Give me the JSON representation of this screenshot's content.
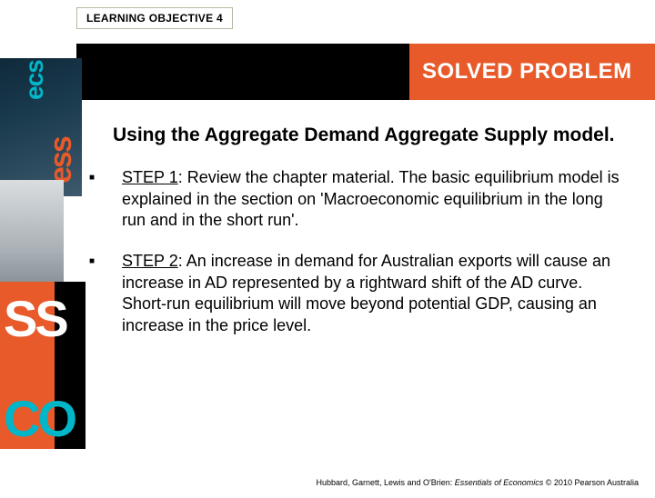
{
  "header": {
    "learning_objective": "LEARNING OBJECTIVE 4",
    "banner_label": "SOLVED PROBLEM"
  },
  "content": {
    "title": "Using the Aggregate Demand Aggregate Supply model.",
    "steps": [
      {
        "label": "STEP 1",
        "text": ": Review the chapter material. The basic equilibrium model is explained in the section on 'Macroeconomic equilibrium in the long run and in the short run'."
      },
      {
        "label": "STEP 2",
        "text": ": An increase in demand for Australian exports will cause an increase in AD represented by a rightward shift of the AD curve.  Short-run equilibrium will move beyond potential GDP, causing an increase in the price level."
      }
    ]
  },
  "footer": {
    "authors": "Hubbard, Garnett, Lewis and O'Brien: ",
    "book": "Essentials of Economics",
    "copyright": " © 2010 Pearson Australia"
  },
  "side_graphic": {
    "teal_text": "ecs",
    "orange_text": "ess",
    "white_text": "SS",
    "cyan_text": "CO",
    "colors": {
      "orange": "#e85a2a",
      "black": "#000000",
      "teal": "#00b6c8",
      "dark_bg": "#1a3a4e"
    }
  },
  "colors": {
    "banner_black": "#000000",
    "banner_orange": "#e85a2a",
    "text": "#000000",
    "background": "#ffffff"
  }
}
